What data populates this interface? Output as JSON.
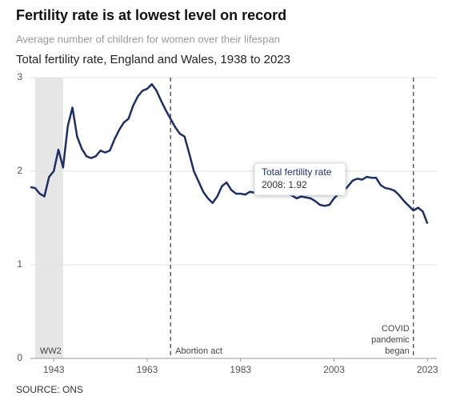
{
  "chart_data": {
    "type": "line",
    "title": "Fertility rate is at lowest level on record",
    "subtitle": "Average number of children for women over their lifespan",
    "chart_title": "Total fertility rate, England and Wales, 1938 to 2023",
    "source": "SOURCE: ONS",
    "x": [
      1938,
      1939,
      1940,
      1941,
      1942,
      1943,
      1944,
      1945,
      1946,
      1947,
      1948,
      1949,
      1950,
      1951,
      1952,
      1953,
      1954,
      1955,
      1956,
      1957,
      1958,
      1959,
      1960,
      1961,
      1962,
      1963,
      1964,
      1965,
      1966,
      1967,
      1968,
      1969,
      1970,
      1971,
      1972,
      1973,
      1974,
      1975,
      1976,
      1977,
      1978,
      1979,
      1980,
      1981,
      1982,
      1983,
      1984,
      1985,
      1986,
      1987,
      1988,
      1989,
      1990,
      1991,
      1992,
      1993,
      1994,
      1995,
      1996,
      1997,
      1998,
      1999,
      2000,
      2001,
      2002,
      2003,
      2004,
      2005,
      2006,
      2007,
      2008,
      2009,
      2010,
      2011,
      2012,
      2013,
      2014,
      2015,
      2016,
      2017,
      2018,
      2019,
      2020,
      2021,
      2022,
      2023
    ],
    "series": [
      {
        "name": "Total fertility rate",
        "color": "#1f2f66",
        "values": [
          1.83,
          1.82,
          1.76,
          1.73,
          1.94,
          2.0,
          2.23,
          2.04,
          2.48,
          2.68,
          2.37,
          2.24,
          2.16,
          2.14,
          2.16,
          2.22,
          2.2,
          2.22,
          2.34,
          2.44,
          2.52,
          2.56,
          2.7,
          2.8,
          2.86,
          2.88,
          2.93,
          2.86,
          2.75,
          2.65,
          2.56,
          2.47,
          2.4,
          2.37,
          2.19,
          2.0,
          1.89,
          1.78,
          1.71,
          1.66,
          1.73,
          1.84,
          1.88,
          1.8,
          1.76,
          1.76,
          1.75,
          1.78,
          1.77,
          1.81,
          1.82,
          1.8,
          1.83,
          1.82,
          1.79,
          1.76,
          1.74,
          1.71,
          1.73,
          1.72,
          1.71,
          1.68,
          1.64,
          1.63,
          1.64,
          1.71,
          1.76,
          1.78,
          1.84,
          1.9,
          1.92,
          1.91,
          1.94,
          1.93,
          1.93,
          1.85,
          1.82,
          1.81,
          1.79,
          1.74,
          1.68,
          1.63,
          1.58,
          1.61,
          1.57,
          1.44
        ]
      }
    ],
    "xlim": [
      1938,
      2025
    ],
    "xticks": [
      1943,
      1963,
      1983,
      2003,
      2023
    ],
    "ylim": [
      0,
      3
    ],
    "yticks": [
      0,
      1,
      2,
      3
    ],
    "grid": true,
    "shaded_regions": [
      {
        "label": "WW2",
        "x": [
          1939,
          1945
        ],
        "color": "#e6e6e6"
      }
    ],
    "event_lines": [
      {
        "label": [
          "Abortion act"
        ],
        "x": 1968
      },
      {
        "label": [
          "COVID",
          "pandemic",
          "began"
        ],
        "x": 2020
      }
    ],
    "tooltip": {
      "text": "2008: 1.92"
    }
  }
}
